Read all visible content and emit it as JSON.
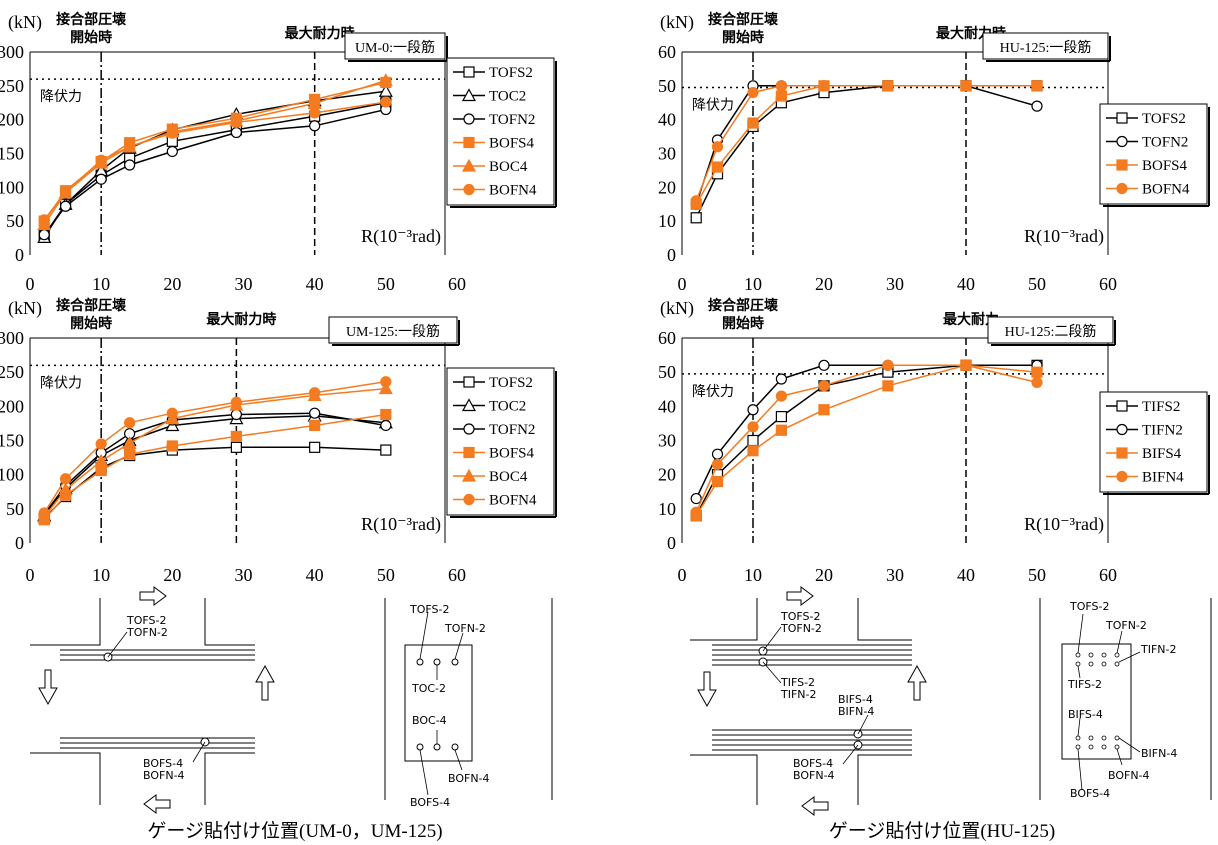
{
  "chart_data": [
    {
      "type": "line",
      "title": "UM-0:一段筋",
      "ylabel": "(kN)",
      "xlabel": "R(10⁻³rad)",
      "xlim": [
        0,
        60
      ],
      "ylim": [
        0,
        300
      ],
      "xticks": [
        0,
        10,
        20,
        30,
        40,
        50,
        60
      ],
      "yticks": [
        0,
        50,
        100,
        150,
        200,
        250,
        300
      ],
      "grid": false,
      "legend": "right",
      "annotations": [
        {
          "type": "vline",
          "x": 10,
          "style": "dashdot",
          "label": "接合部圧壊\n開始時"
        },
        {
          "type": "vline",
          "x": 40,
          "style": "dashed",
          "label": "最大耐力時"
        },
        {
          "type": "hline",
          "y": 260,
          "style": "dotted",
          "label": "降伏力"
        }
      ],
      "series": [
        {
          "name": "TOFS2",
          "marker": "square-open",
          "color": "#000000",
          "x": [
            2,
            5,
            10,
            14,
            20,
            29,
            40,
            50
          ],
          "y": [
            29,
            75,
            118,
            143,
            168,
            185,
            205,
            225
          ]
        },
        {
          "name": "TOC2",
          "marker": "triangle-open",
          "color": "#000000",
          "x": [
            2,
            5,
            10,
            14,
            20,
            29,
            40,
            50
          ],
          "y": [
            26,
            75,
            125,
            158,
            185,
            208,
            228,
            242
          ]
        },
        {
          "name": "TOFN2",
          "marker": "circle-open",
          "color": "#000000",
          "x": [
            2,
            5,
            10,
            14,
            20,
            29,
            40,
            50
          ],
          "y": [
            30,
            72,
            112,
            133,
            153,
            181,
            191,
            215
          ]
        },
        {
          "name": "BOFS4",
          "marker": "square-filled",
          "color": "#f47b20",
          "x": [
            2,
            5,
            10,
            14,
            20,
            29,
            40,
            50
          ],
          "y": [
            50,
            95,
            138,
            166,
            186,
            202,
            230,
            255
          ]
        },
        {
          "name": "BOC4",
          "marker": "triangle-filled",
          "color": "#f47b20",
          "x": [
            2,
            5,
            10,
            14,
            20,
            29,
            40,
            50
          ],
          "y": [
            45,
            92,
            136,
            160,
            182,
            198,
            224,
            258
          ]
        },
        {
          "name": "BOFN4",
          "marker": "circle-filled",
          "color": "#f47b20",
          "x": [
            2,
            5,
            10,
            14,
            20,
            29,
            40,
            50
          ],
          "y": [
            52,
            93,
            140,
            160,
            180,
            196,
            210,
            226
          ]
        }
      ]
    },
    {
      "type": "line",
      "title": "HU-125:一段筋",
      "ylabel": "(kN)",
      "xlabel": "R(10⁻³rad)",
      "xlim": [
        0,
        60
      ],
      "ylim": [
        0,
        60
      ],
      "xticks": [
        0,
        10,
        20,
        30,
        40,
        50,
        60
      ],
      "yticks": [
        0,
        10,
        20,
        30,
        40,
        50,
        60
      ],
      "grid": false,
      "legend": "right",
      "annotations": [
        {
          "type": "vline",
          "x": 10,
          "style": "dashdot",
          "label": "接合部圧壊\n開始時"
        },
        {
          "type": "vline",
          "x": 40,
          "style": "dashed",
          "label": "最大耐力時"
        },
        {
          "type": "hline",
          "y": 49.5,
          "style": "dotted",
          "label": "降伏力"
        }
      ],
      "series": [
        {
          "name": "TOFS2",
          "marker": "square-open",
          "color": "#000000",
          "x": [
            2,
            5,
            10,
            14,
            20,
            29,
            40,
            50
          ],
          "y": [
            11,
            24,
            38,
            45,
            48,
            50,
            50,
            50
          ]
        },
        {
          "name": "TOFN2",
          "marker": "circle-open",
          "color": "#000000",
          "x": [
            2,
            5,
            10,
            14,
            20,
            29,
            40,
            50
          ],
          "y": [
            15,
            34,
            50,
            50,
            50,
            50,
            50,
            44
          ]
        },
        {
          "name": "BOFS4",
          "marker": "square-filled",
          "color": "#f47b20",
          "x": [
            2,
            5,
            10,
            14,
            20,
            29,
            40,
            50
          ],
          "y": [
            15,
            26,
            39,
            47,
            50,
            50,
            50,
            50
          ]
        },
        {
          "name": "BOFN4",
          "marker": "circle-filled",
          "color": "#f47b20",
          "x": [
            2,
            5,
            10,
            14,
            20,
            29,
            40,
            50
          ],
          "y": [
            16,
            32,
            48,
            50,
            50,
            50,
            50,
            50
          ]
        }
      ]
    },
    {
      "type": "line",
      "title": "UM-125:一段筋",
      "ylabel": "(kN)",
      "xlabel": "R(10⁻³rad)",
      "xlim": [
        0,
        60
      ],
      "ylim": [
        0,
        300
      ],
      "xticks": [
        0,
        10,
        20,
        30,
        40,
        50,
        60
      ],
      "yticks": [
        0,
        50,
        100,
        150,
        200,
        250,
        300
      ],
      "grid": false,
      "legend": "right",
      "annotations": [
        {
          "type": "vline",
          "x": 10,
          "style": "dashdot",
          "label": "接合部圧壊\n開始時"
        },
        {
          "type": "vline",
          "x": 29,
          "style": "dashed",
          "label": "最大耐力時"
        },
        {
          "type": "hline",
          "y": 260,
          "style": "dotted",
          "label": "降伏力"
        }
      ],
      "series": [
        {
          "name": "TOFS2",
          "marker": "square-open",
          "color": "#000000",
          "x": [
            2,
            5,
            10,
            14,
            20,
            29,
            40,
            50
          ],
          "y": [
            36,
            68,
            110,
            128,
            136,
            140,
            140,
            136
          ]
        },
        {
          "name": "TOC2",
          "marker": "triangle-open",
          "color": "#000000",
          "x": [
            2,
            5,
            10,
            14,
            20,
            29,
            40,
            50
          ],
          "y": [
            40,
            80,
            128,
            150,
            172,
            182,
            186,
            176
          ]
        },
        {
          "name": "TOFN2",
          "marker": "circle-open",
          "color": "#000000",
          "x": [
            2,
            5,
            10,
            14,
            20,
            29,
            40,
            50
          ],
          "y": [
            42,
            84,
            132,
            160,
            180,
            188,
            190,
            172
          ]
        },
        {
          "name": "BOFS4",
          "marker": "square-filled",
          "color": "#f47b20",
          "x": [
            2,
            5,
            10,
            14,
            20,
            29,
            40,
            50
          ],
          "y": [
            34,
            70,
            106,
            130,
            142,
            156,
            172,
            188
          ]
        },
        {
          "name": "BOC4",
          "marker": "triangle-filled",
          "color": "#f47b20",
          "x": [
            2,
            5,
            10,
            14,
            20,
            29,
            40,
            50
          ],
          "y": [
            38,
            78,
            120,
            146,
            182,
            202,
            216,
            226
          ]
        },
        {
          "name": "BOFN4",
          "marker": "circle-filled",
          "color": "#f47b20",
          "x": [
            2,
            5,
            10,
            14,
            20,
            29,
            40,
            50
          ],
          "y": [
            44,
            94,
            145,
            176,
            190,
            206,
            220,
            236
          ]
        }
      ]
    },
    {
      "type": "line",
      "title": "HU-125:二段筋",
      "ylabel": "(kN)",
      "xlabel": "R(10⁻³rad)",
      "xlim": [
        0,
        60
      ],
      "ylim": [
        0,
        60
      ],
      "xticks": [
        0,
        10,
        20,
        30,
        40,
        50,
        60
      ],
      "yticks": [
        0,
        10,
        20,
        30,
        40,
        50,
        60
      ],
      "grid": false,
      "legend": "right",
      "annotations": [
        {
          "type": "vline",
          "x": 10,
          "style": "dashdot",
          "label": "接合部圧壊\n開始時"
        },
        {
          "type": "vline",
          "x": 40,
          "style": "dashed",
          "label": "最大耐力"
        },
        {
          "type": "hline",
          "y": 49.5,
          "style": "dotted",
          "label": "降伏力"
        }
      ],
      "series": [
        {
          "name": "TIFS2",
          "marker": "square-open",
          "color": "#000000",
          "x": [
            2,
            5,
            10,
            14,
            20,
            29,
            40,
            50
          ],
          "y": [
            8,
            20,
            30,
            37,
            46,
            50,
            52,
            52
          ]
        },
        {
          "name": "TIFN2",
          "marker": "circle-open",
          "color": "#000000",
          "x": [
            2,
            5,
            10,
            14,
            20,
            29,
            40,
            50
          ],
          "y": [
            13,
            26,
            39,
            48,
            52,
            52,
            52,
            52
          ]
        },
        {
          "name": "BIFS4",
          "marker": "square-filled",
          "color": "#f47b20",
          "x": [
            2,
            5,
            10,
            14,
            20,
            29,
            40,
            50
          ],
          "y": [
            8,
            18,
            27,
            33,
            39,
            46,
            52,
            50
          ]
        },
        {
          "name": "BIFN4",
          "marker": "circle-filled",
          "color": "#f47b20",
          "x": [
            2,
            5,
            10,
            14,
            20,
            29,
            40,
            50
          ],
          "y": [
            9,
            23,
            34,
            43,
            46,
            52,
            52,
            47
          ]
        }
      ]
    }
  ],
  "diagrams": {
    "left": {
      "labels": [
        "TOFS-2",
        "TOFN-2",
        "BOFS-4",
        "BOFN-4"
      ],
      "section_labels": [
        "TOFS-2",
        "TOFN-2",
        "TOC-2",
        "BOC-4",
        "BOFN-4",
        "BOFS-4"
      ],
      "caption": "ゲージ貼付け位置(UM-0，UM-125)"
    },
    "right": {
      "labels": [
        "TOFS-2",
        "TOFN-2",
        "TIFS-2",
        "TIFN-2",
        "BIFS-4",
        "BIFN-4",
        "BOFS-4",
        "BOFN-4"
      ],
      "section_labels": [
        "TOFS-2",
        "TOFN-2",
        "TIFN-2",
        "TIFS-2",
        "BIFS-4",
        "BIFN-4",
        "BOFN-4",
        "BOFS-4"
      ],
      "caption": "ゲージ貼付け位置(HU-125)"
    }
  }
}
